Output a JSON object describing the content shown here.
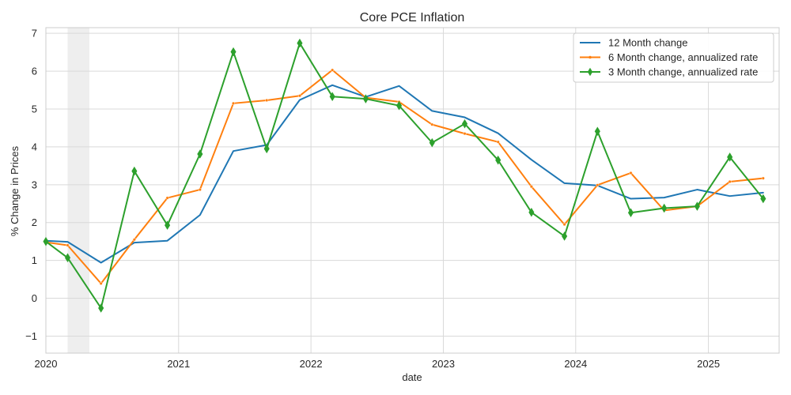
{
  "chart_data": {
    "type": "line",
    "title": "Core PCE Inflation",
    "xlabel": "date",
    "ylabel": "% Change in Prices",
    "xlim": [
      "2020-01-01",
      "2025-07-15"
    ],
    "ylim": [
      -1.45,
      7.15
    ],
    "grid": true,
    "legend_position": "top-right",
    "x_ticks": [
      "2020",
      "2021",
      "2022",
      "2023",
      "2024",
      "2025"
    ],
    "y_ticks": [
      -1,
      0,
      1,
      2,
      3,
      4,
      5,
      6,
      7
    ],
    "shaded_regions": [
      {
        "start": "2020-03-01",
        "end": "2020-04-30",
        "color": "#e8e8e8"
      }
    ],
    "series": [
      {
        "name": "12 Month change",
        "color": "#1f77b4",
        "marker": "none",
        "points": [
          [
            "2020-01-01",
            1.52
          ],
          [
            "2020-03-01",
            1.49
          ],
          [
            "2020-06-01",
            0.94
          ],
          [
            "2020-09-01",
            1.47
          ],
          [
            "2020-12-01",
            1.52
          ],
          [
            "2021-03-01",
            2.2
          ],
          [
            "2021-06-01",
            3.89
          ],
          [
            "2021-09-01",
            4.05
          ],
          [
            "2021-12-01",
            5.24
          ],
          [
            "2022-03-01",
            5.63
          ],
          [
            "2022-06-01",
            5.32
          ],
          [
            "2022-09-01",
            5.61
          ],
          [
            "2022-12-01",
            4.95
          ],
          [
            "2023-03-01",
            4.78
          ],
          [
            "2023-06-01",
            4.36
          ],
          [
            "2023-09-01",
            3.66
          ],
          [
            "2023-12-01",
            3.04
          ],
          [
            "2024-03-01",
            2.98
          ],
          [
            "2024-06-01",
            2.63
          ],
          [
            "2024-09-01",
            2.66
          ],
          [
            "2024-12-01",
            2.87
          ],
          [
            "2025-03-01",
            2.7
          ],
          [
            "2025-06-01",
            2.79
          ]
        ]
      },
      {
        "name": "6 Month change, annualized rate",
        "color": "#ff7f0e",
        "marker": "point",
        "points": [
          [
            "2020-01-01",
            1.48
          ],
          [
            "2020-03-01",
            1.4
          ],
          [
            "2020-06-01",
            0.39
          ],
          [
            "2020-09-01",
            1.55
          ],
          [
            "2020-12-01",
            2.65
          ],
          [
            "2021-03-01",
            2.87
          ],
          [
            "2021-06-01",
            5.15
          ],
          [
            "2021-09-01",
            5.23
          ],
          [
            "2021-12-01",
            5.35
          ],
          [
            "2022-03-01",
            6.03
          ],
          [
            "2022-06-01",
            5.3
          ],
          [
            "2022-09-01",
            5.19
          ],
          [
            "2022-12-01",
            4.59
          ],
          [
            "2023-03-01",
            4.35
          ],
          [
            "2023-06-01",
            4.13
          ],
          [
            "2023-09-01",
            2.95
          ],
          [
            "2023-12-01",
            1.95
          ],
          [
            "2024-03-01",
            2.99
          ],
          [
            "2024-06-01",
            3.31
          ],
          [
            "2024-09-01",
            2.32
          ],
          [
            "2024-12-01",
            2.43
          ],
          [
            "2025-03-01",
            3.08
          ],
          [
            "2025-06-01",
            3.17
          ]
        ]
      },
      {
        "name": "3 Month change, annualized rate",
        "color": "#2ca02c",
        "marker": "diamond",
        "points": [
          [
            "2020-01-01",
            1.5
          ],
          [
            "2020-03-01",
            1.07
          ],
          [
            "2020-06-01",
            -0.26
          ],
          [
            "2020-09-01",
            3.36
          ],
          [
            "2020-12-01",
            1.93
          ],
          [
            "2021-03-01",
            3.81
          ],
          [
            "2021-06-01",
            6.51
          ],
          [
            "2021-09-01",
            3.95
          ],
          [
            "2021-12-01",
            6.74
          ],
          [
            "2022-03-01",
            5.33
          ],
          [
            "2022-06-01",
            5.27
          ],
          [
            "2022-09-01",
            5.09
          ],
          [
            "2022-12-01",
            4.11
          ],
          [
            "2023-03-01",
            4.61
          ],
          [
            "2023-06-01",
            3.65
          ],
          [
            "2023-09-01",
            2.27
          ],
          [
            "2023-12-01",
            1.64
          ],
          [
            "2024-03-01",
            4.41
          ],
          [
            "2024-06-01",
            2.26
          ],
          [
            "2024-09-01",
            2.38
          ],
          [
            "2024-12-01",
            2.43
          ],
          [
            "2025-03-01",
            3.73
          ],
          [
            "2025-06-01",
            2.63
          ]
        ]
      }
    ]
  }
}
